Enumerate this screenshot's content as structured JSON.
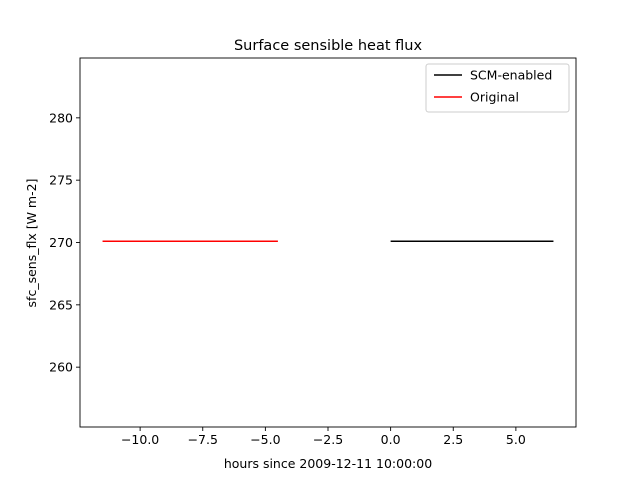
{
  "chart_data": {
    "type": "line",
    "title": "Surface sensible heat flux",
    "xlabel": "hours since 2009-12-11 10:00:00",
    "ylabel": "sfc_sens_flx [W m-2]",
    "xlim": [
      -12.4,
      7.4
    ],
    "ylim": [
      255.2,
      284.8
    ],
    "xticks": [
      -10.0,
      -7.5,
      -5.0,
      -2.5,
      0.0,
      2.5,
      5.0
    ],
    "xtick_labels": [
      "−10.0",
      "−7.5",
      "−5.0",
      "−2.5",
      "0.0",
      "2.5",
      "5.0"
    ],
    "yticks": [
      260,
      265,
      270,
      275,
      280
    ],
    "ytick_labels": [
      "260",
      "265",
      "270",
      "275",
      "280"
    ],
    "grid": false,
    "legend_position": "top-right",
    "series": [
      {
        "name": "SCM-enabled",
        "color": "#000000",
        "x": [
          0.0,
          6.5
        ],
        "y": [
          270.1,
          270.1
        ]
      },
      {
        "name": "Original",
        "color": "#ff0000",
        "x": [
          -11.5,
          -4.5
        ],
        "y": [
          270.1,
          270.1
        ]
      }
    ]
  }
}
